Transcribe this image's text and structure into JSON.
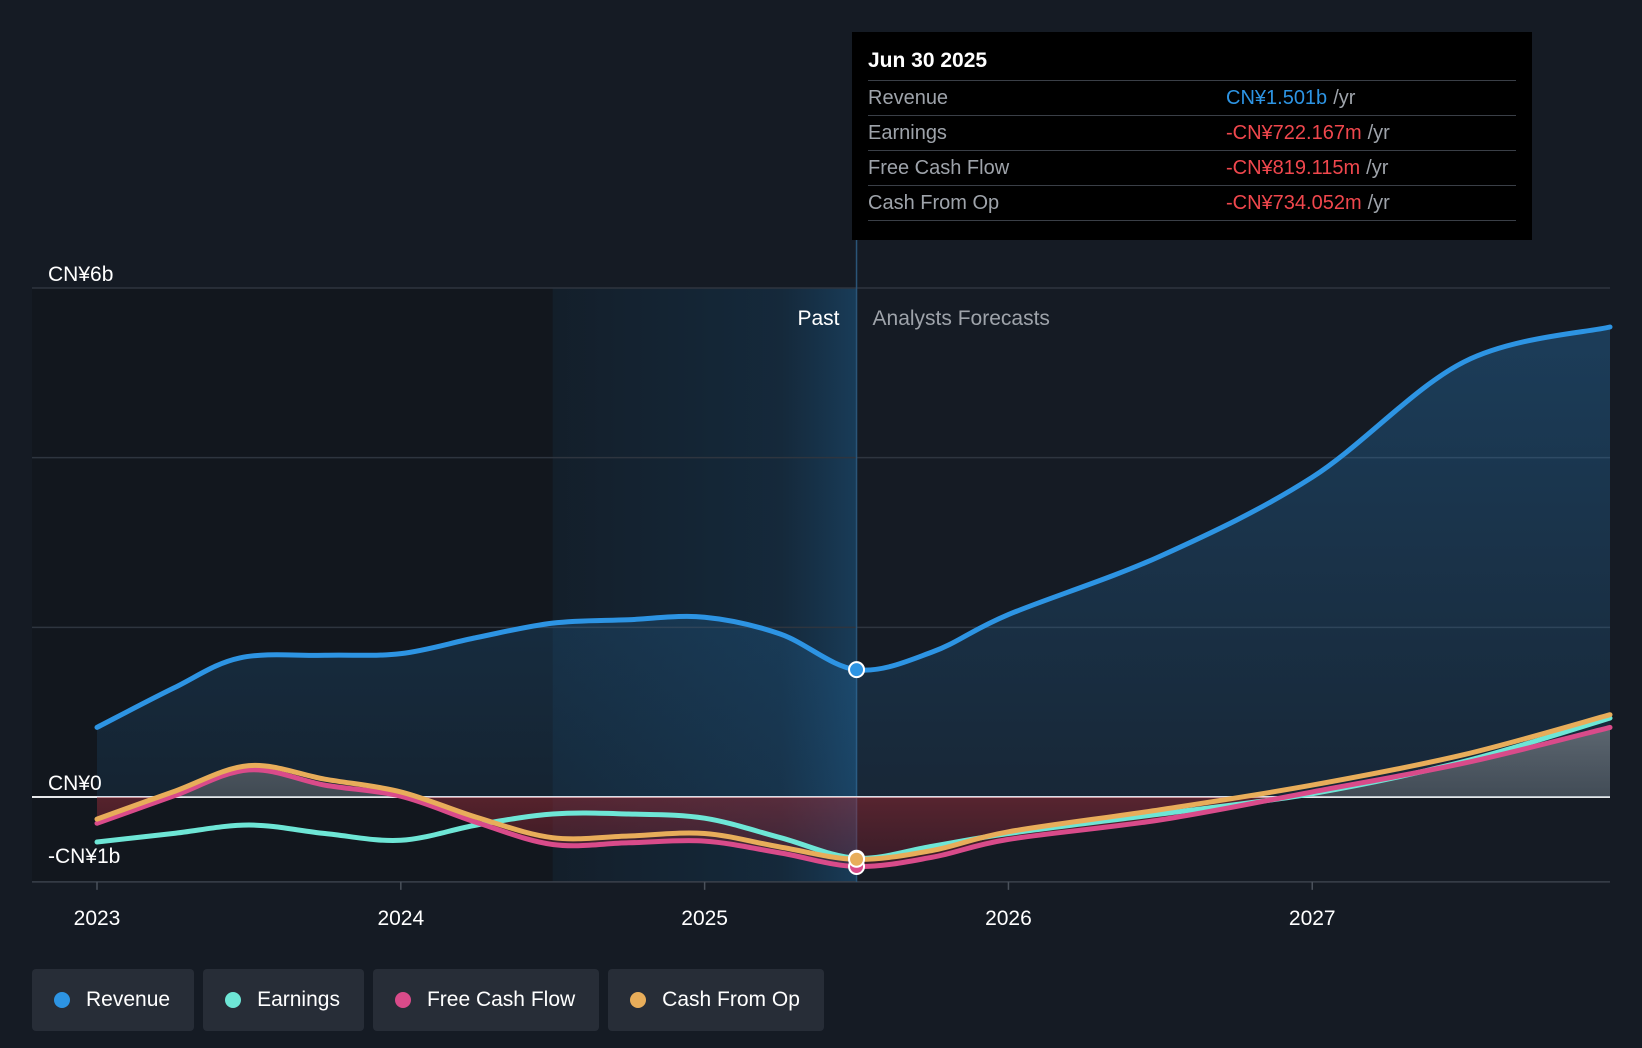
{
  "tooltip": {
    "date": "Jun 30 2025",
    "rows": [
      {
        "label": "Revenue",
        "value": "CN¥1.501b",
        "unit": "/yr",
        "color": "#2d94e3"
      },
      {
        "label": "Earnings",
        "value": "-CN¥722.167m",
        "unit": "/yr",
        "color": "#f0474d"
      },
      {
        "label": "Free Cash Flow",
        "value": "-CN¥819.115m",
        "unit": "/yr",
        "color": "#f0474d"
      },
      {
        "label": "Cash From Op",
        "value": "-CN¥734.052m",
        "unit": "/yr",
        "color": "#f0474d"
      }
    ]
  },
  "legend": [
    {
      "label": "Revenue",
      "color": "#2d94e3"
    },
    {
      "label": "Earnings",
      "color": "#6ee6d6"
    },
    {
      "label": "Free Cash Flow",
      "color": "#d94b8a"
    },
    {
      "label": "Cash From Op",
      "color": "#e8ad5a"
    }
  ],
  "chart_data": {
    "type": "line",
    "y_tick_labels": [
      "CN¥6b",
      "CN¥0",
      "-CN¥1b"
    ],
    "x_tick_labels": [
      "2023",
      "2024",
      "2025",
      "2026",
      "2027"
    ],
    "ylim": [
      -1,
      6
    ],
    "xlim": [
      2023.0,
      2027.98
    ],
    "past_label": "Past",
    "forecast_label": "Analysts Forecasts",
    "present_x": 2025.5,
    "grid": true,
    "series": [
      {
        "name": "Revenue",
        "color": "#2d94e3",
        "x": [
          2023.0,
          2023.25,
          2023.47,
          2023.75,
          2024.0,
          2024.25,
          2024.5,
          2024.75,
          2025.0,
          2025.25,
          2025.5,
          2025.75,
          2026.0,
          2026.5,
          2027.0,
          2027.5,
          2027.98
        ],
        "y": [
          0.82,
          1.28,
          1.64,
          1.67,
          1.69,
          1.88,
          2.05,
          2.09,
          2.12,
          1.92,
          1.501,
          1.71,
          2.15,
          2.84,
          3.77,
          5.13,
          5.54
        ]
      },
      {
        "name": "Earnings",
        "color": "#6ee6d6",
        "x": [
          2023.0,
          2023.25,
          2023.5,
          2023.75,
          2024.0,
          2024.25,
          2024.5,
          2024.75,
          2025.0,
          2025.25,
          2025.5,
          2025.75,
          2026.0,
          2026.5,
          2027.0,
          2027.5,
          2027.98
        ],
        "y": [
          -0.53,
          -0.43,
          -0.33,
          -0.43,
          -0.51,
          -0.33,
          -0.2,
          -0.2,
          -0.25,
          -0.48,
          -0.722,
          -0.58,
          -0.43,
          -0.2,
          0.04,
          0.42,
          0.93
        ]
      },
      {
        "name": "Free Cash Flow",
        "color": "#d94b8a",
        "x": [
          2023.0,
          2023.25,
          2023.5,
          2023.75,
          2024.0,
          2024.25,
          2024.5,
          2024.75,
          2025.0,
          2025.25,
          2025.5,
          2025.75,
          2026.0,
          2026.5,
          2027.0,
          2027.5,
          2027.98
        ],
        "y": [
          -0.31,
          0.01,
          0.32,
          0.14,
          0.01,
          -0.3,
          -0.56,
          -0.54,
          -0.52,
          -0.66,
          -0.819,
          -0.71,
          -0.5,
          -0.27,
          0.06,
          0.4,
          0.82
        ]
      },
      {
        "name": "Cash From Op",
        "color": "#e8ad5a",
        "x": [
          2023.0,
          2023.25,
          2023.5,
          2023.75,
          2024.0,
          2024.25,
          2024.5,
          2024.75,
          2025.0,
          2025.25,
          2025.5,
          2025.75,
          2026.0,
          2026.5,
          2027.0,
          2027.5,
          2027.98
        ],
        "y": [
          -0.26,
          0.06,
          0.37,
          0.21,
          0.06,
          -0.24,
          -0.48,
          -0.46,
          -0.43,
          -0.59,
          -0.734,
          -0.63,
          -0.41,
          -0.15,
          0.14,
          0.5,
          0.97
        ]
      }
    ]
  }
}
